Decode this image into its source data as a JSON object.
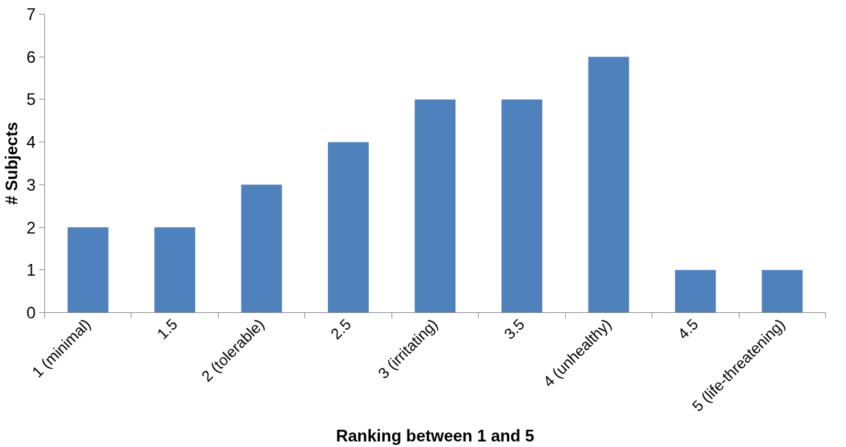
{
  "chart_data": {
    "type": "bar",
    "xlabel": "Ranking between 1 and 5",
    "ylabel": "# Subjects",
    "categories": [
      "1 (minimal)",
      "1.5",
      "2 (tolerable)",
      "2.5",
      "3 (irritating)",
      "3.5",
      "4 (unhealthy)",
      "4.5",
      "5 (life-threatening)"
    ],
    "values": [
      2,
      2,
      3,
      4,
      5,
      5,
      6,
      1,
      1
    ],
    "color": "#4f81bd",
    "ylim": [
      0,
      7
    ],
    "yticks": [
      0,
      1,
      2,
      3,
      4,
      5,
      6,
      7
    ],
    "grid": false
  }
}
